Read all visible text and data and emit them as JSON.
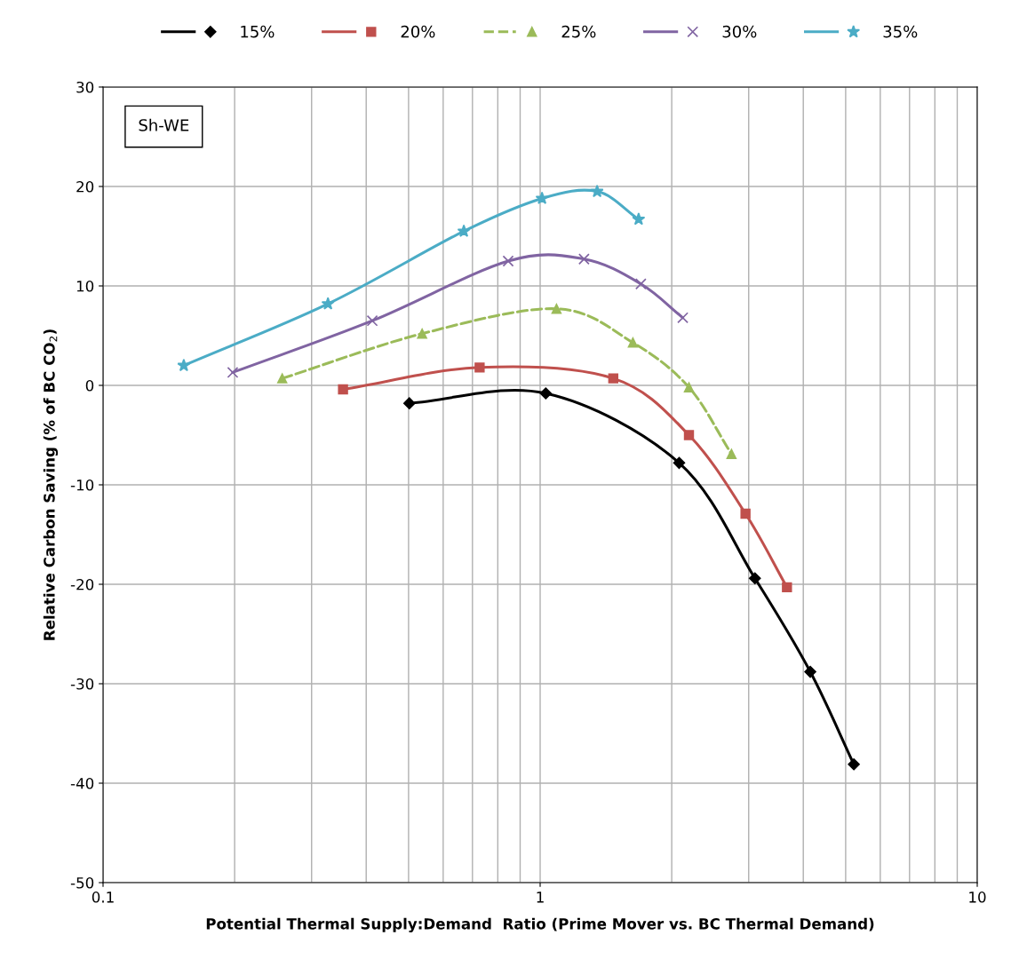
{
  "chart_data": {
    "type": "line",
    "xlabel": "Potential Thermal Supply:Demand  Ratio (Prime Mover vs. BC Thermal Demand)",
    "ylabel": "Relative Carbon Saving (% of BC CO$_{2}$)",
    "log": "x",
    "xlim": [
      0.1,
      10
    ],
    "xticks": [
      0.1,
      1,
      10
    ],
    "ylim": [
      -50,
      30
    ],
    "yticks": [
      -50,
      -40,
      -30,
      -20,
      -10,
      0,
      10,
      20,
      30
    ],
    "grid": true,
    "legend": "top",
    "annotations": [
      "Sh-WE"
    ],
    "series": [
      {
        "name": "15%",
        "color": "#000000",
        "marker": "diamond",
        "line_style": "solid",
        "x": [
          0.502,
          1.03,
          2.08,
          3.1,
          4.15,
          5.22
        ],
        "values": [
          -1.8,
          -0.8,
          -7.8,
          -19.4,
          -28.8,
          -38.1
        ]
      },
      {
        "name": "20%",
        "color": "#c0504d",
        "marker": "square",
        "line_style": "solid",
        "x": [
          0.354,
          0.727,
          1.47,
          2.19,
          2.95,
          3.67
        ],
        "values": [
          -0.4,
          1.8,
          0.7,
          -5.0,
          -12.9,
          -20.3
        ]
      },
      {
        "name": "25%",
        "color": "#9bbb59",
        "marker": "triangle",
        "line_style": "dashed",
        "x": [
          0.257,
          0.537,
          1.09,
          1.63,
          2.19,
          2.74
        ],
        "values": [
          0.7,
          5.2,
          7.7,
          4.3,
          -0.2,
          -6.9
        ]
      },
      {
        "name": "30%",
        "color": "#8064a2",
        "marker": "cross",
        "line_style": "solid",
        "x": [
          0.198,
          0.413,
          0.845,
          1.26,
          1.7,
          2.12
        ],
        "values": [
          1.3,
          6.5,
          12.5,
          12.7,
          10.2,
          6.8
        ]
      },
      {
        "name": "35%",
        "color": "#4bacc6",
        "marker": "star",
        "line_style": "solid",
        "x": [
          0.153,
          0.327,
          0.669,
          1.01,
          1.35,
          1.68
        ],
        "values": [
          2.0,
          8.2,
          15.5,
          18.8,
          19.5,
          16.7
        ]
      }
    ]
  }
}
